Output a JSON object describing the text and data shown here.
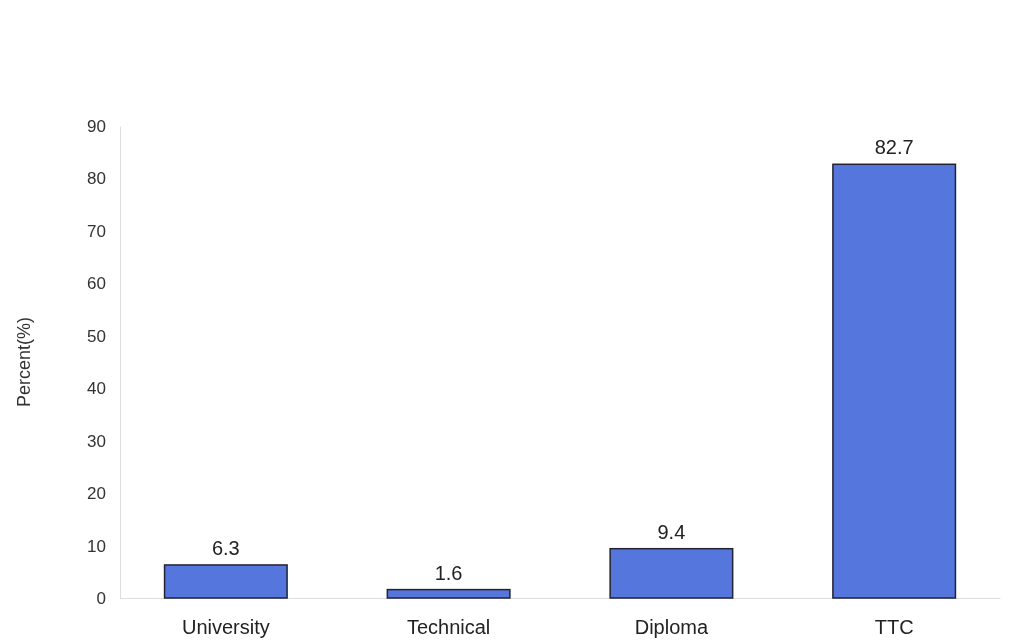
{
  "chart_data": {
    "type": "bar",
    "ylabel": "Percent(%)",
    "categories": [
      "University",
      "Technical",
      "Diploma",
      "TTC"
    ],
    "values": [
      6.3,
      1.6,
      9.4,
      82.7
    ],
    "color": "#5577dd",
    "ylim": [
      0,
      90
    ],
    "yticks": [
      0,
      10,
      20,
      30,
      40,
      50,
      60,
      70,
      80,
      90
    ],
    "data_labels": true
  }
}
